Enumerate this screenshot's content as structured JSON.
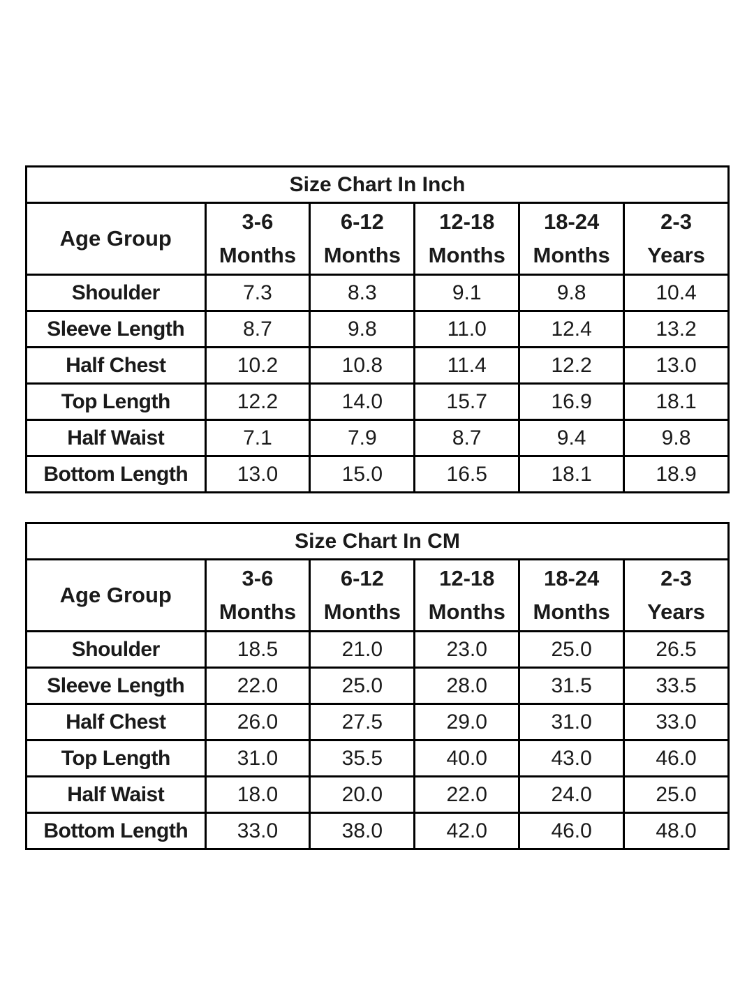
{
  "page": {
    "background_color": "#ffffff",
    "border_color": "#000000",
    "text_color": "#1a1a1a"
  },
  "chart_data": [
    {
      "type": "table",
      "title": "Size Chart In Inch",
      "corner_header": "Age Group",
      "column_headers": [
        [
          "3-6",
          "Months"
        ],
        [
          "6-12",
          "Months"
        ],
        [
          "12-18",
          "Months"
        ],
        [
          "18-24",
          "Months"
        ],
        [
          "2-3",
          "Years"
        ]
      ],
      "rows": [
        {
          "label": "Shoulder",
          "values": [
            "7.3",
            "8.3",
            "9.1",
            "9.8",
            "10.4"
          ]
        },
        {
          "label": "Sleeve Length",
          "values": [
            "8.7",
            "9.8",
            "11.0",
            "12.4",
            "13.2"
          ]
        },
        {
          "label": "Half Chest",
          "values": [
            "10.2",
            "10.8",
            "11.4",
            "12.2",
            "13.0"
          ]
        },
        {
          "label": "Top Length",
          "values": [
            "12.2",
            "14.0",
            "15.7",
            "16.9",
            "18.1"
          ]
        },
        {
          "label": "Half Waist",
          "values": [
            "7.1",
            "7.9",
            "8.7",
            "9.4",
            "9.8"
          ]
        },
        {
          "label": "Bottom Length",
          "values": [
            "13.0",
            "15.0",
            "16.5",
            "18.1",
            "18.9"
          ]
        }
      ]
    },
    {
      "type": "table",
      "title": "Size Chart In CM",
      "corner_header": "Age Group",
      "column_headers": [
        [
          "3-6",
          "Months"
        ],
        [
          "6-12",
          "Months"
        ],
        [
          "12-18",
          "Months"
        ],
        [
          "18-24",
          "Months"
        ],
        [
          "2-3",
          "Years"
        ]
      ],
      "rows": [
        {
          "label": "Shoulder",
          "values": [
            "18.5",
            "21.0",
            "23.0",
            "25.0",
            "26.5"
          ]
        },
        {
          "label": "Sleeve Length",
          "values": [
            "22.0",
            "25.0",
            "28.0",
            "31.5",
            "33.5"
          ]
        },
        {
          "label": "Half Chest",
          "values": [
            "26.0",
            "27.5",
            "29.0",
            "31.0",
            "33.0"
          ]
        },
        {
          "label": "Top Length",
          "values": [
            "31.0",
            "35.5",
            "40.0",
            "43.0",
            "46.0"
          ]
        },
        {
          "label": "Half Waist",
          "values": [
            "18.0",
            "20.0",
            "22.0",
            "24.0",
            "25.0"
          ]
        },
        {
          "label": "Bottom Length",
          "values": [
            "33.0",
            "38.0",
            "42.0",
            "46.0",
            "48.0"
          ]
        }
      ]
    }
  ]
}
